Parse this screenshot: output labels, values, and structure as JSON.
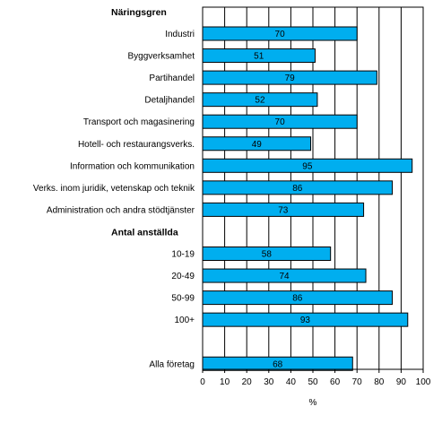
{
  "chart_data": {
    "type": "bar",
    "orientation": "horizontal",
    "xlabel": "%",
    "xlim": [
      0,
      100
    ],
    "xticks": [
      0,
      10,
      20,
      30,
      40,
      50,
      60,
      70,
      80,
      90,
      100
    ],
    "grid": "vertical",
    "bar_color": "#00aeef",
    "groups": [
      {
        "header": "Näringsgren",
        "categories": [
          "Industri",
          "Byggverksamhet",
          "Partihandel",
          "Detaljhandel",
          "Transport och magasinering",
          "Hotell- och restaurangsverks.",
          "Information och kommunikation",
          "Verks. inom juridik, vetenskap och teknik",
          "Administration och andra stödtjänster"
        ],
        "values": [
          70,
          51,
          79,
          52,
          70,
          49,
          95,
          86,
          73
        ]
      },
      {
        "header": "Antal anställda",
        "categories": [
          "10-19",
          "20-49",
          "50-99",
          "100+"
        ],
        "values": [
          58,
          74,
          86,
          93
        ]
      },
      {
        "header": "",
        "categories": [
          "Alla företag"
        ],
        "values": [
          68
        ]
      }
    ]
  }
}
